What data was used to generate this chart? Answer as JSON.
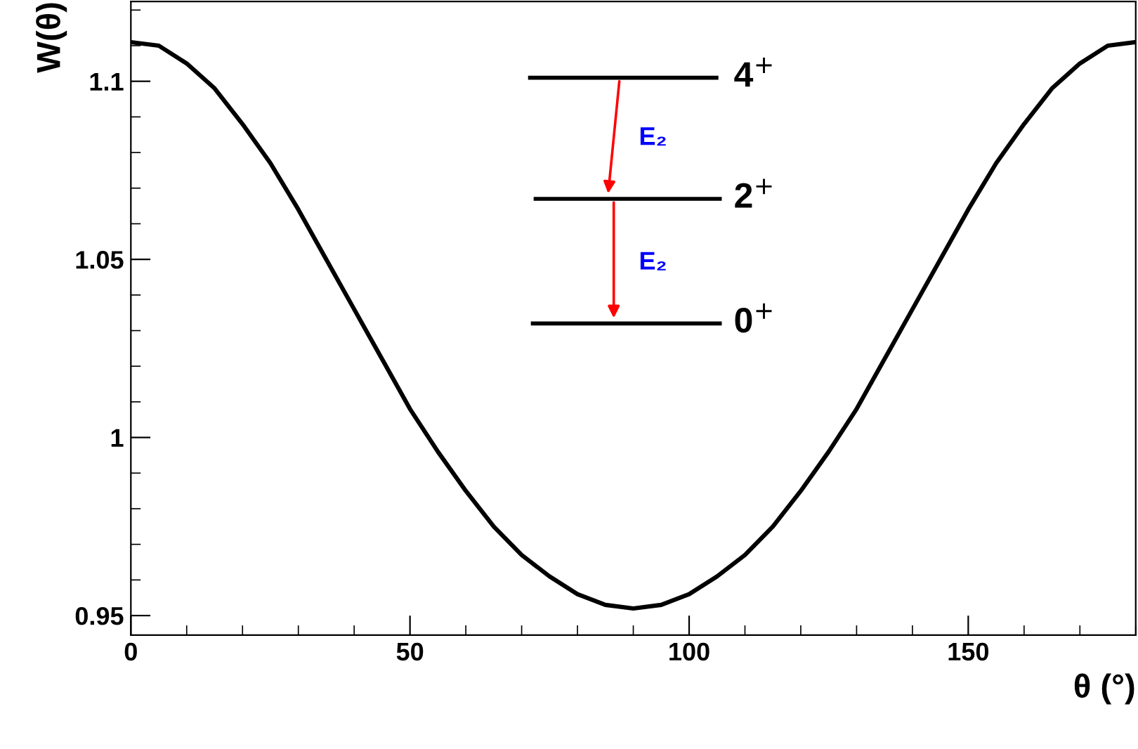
{
  "chart_data": {
    "type": "line",
    "xlabel": "θ (°)",
    "ylabel": "W(θ)",
    "x": [
      0,
      5,
      10,
      15,
      20,
      25,
      30,
      35,
      40,
      45,
      50,
      55,
      60,
      65,
      70,
      75,
      80,
      85,
      90,
      95,
      100,
      105,
      110,
      115,
      120,
      125,
      130,
      135,
      140,
      145,
      150,
      155,
      160,
      165,
      170,
      175,
      180
    ],
    "series": [
      {
        "color": "#000000",
        "values": [
          1.111,
          1.11,
          1.105,
          1.098,
          1.088,
          1.077,
          1.064,
          1.05,
          1.036,
          1.022,
          1.008,
          0.996,
          0.985,
          0.975,
          0.967,
          0.961,
          0.956,
          0.953,
          0.952,
          0.953,
          0.956,
          0.961,
          0.967,
          0.975,
          0.985,
          0.996,
          1.008,
          1.022,
          1.036,
          1.05,
          1.064,
          1.077,
          1.088,
          1.098,
          1.105,
          1.11,
          1.111
        ]
      }
    ],
    "xlim": [
      0,
      180
    ],
    "ylim": [
      0.9445,
      1.1224
    ],
    "xticks": [
      0,
      50,
      100,
      150
    ],
    "yticks": [
      0.95,
      1,
      1.05,
      1.1
    ],
    "grid": false,
    "marker": "none",
    "line_style": "solid",
    "annotations": [
      "4$^{+}$",
      "2$^{+}$",
      "0$^{+}$",
      "E₂",
      "E₂"
    ]
  }
}
